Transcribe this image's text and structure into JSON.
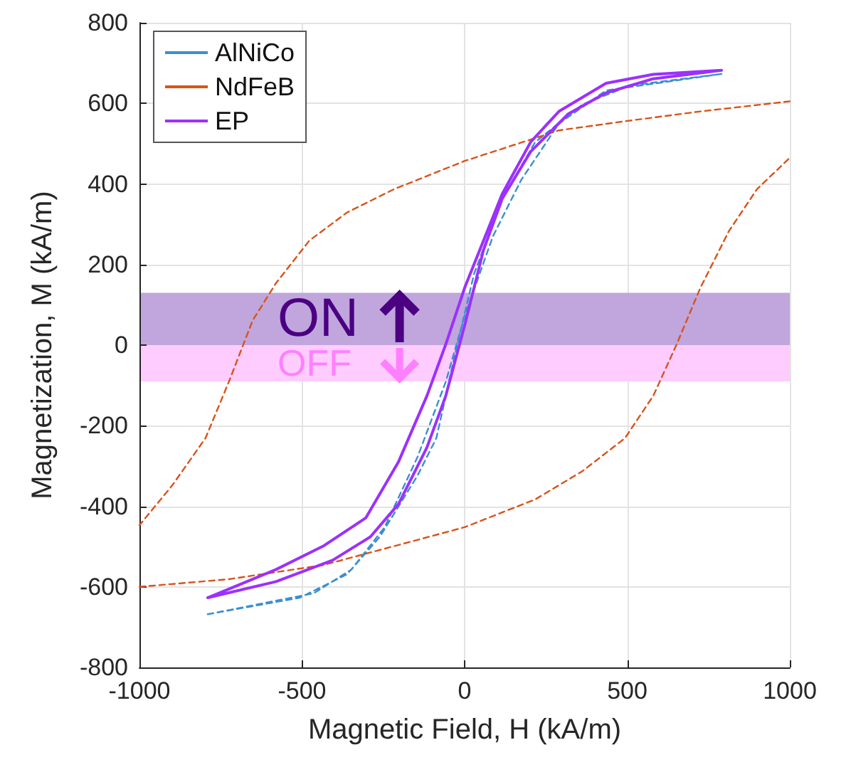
{
  "chart_data": {
    "type": "line",
    "xlabel": "Magnetic Field, H (kA/m)",
    "ylabel": "Magnetization, M (kA/m)",
    "xlim": [
      -1000,
      1000
    ],
    "xticks": [
      -1000,
      -500,
      0,
      500,
      1000
    ],
    "ylim": [
      -800,
      800
    ],
    "yticks": [
      -800,
      -600,
      -400,
      -200,
      0,
      200,
      400,
      600,
      800
    ],
    "grid": true,
    "legend": "top left",
    "marker": "none",
    "bands": [
      {
        "axis": "y",
        "from": 0,
        "to": 130,
        "label": "ON",
        "color": "#c0a6dc"
      },
      {
        "axis": "y",
        "from": -90,
        "to": 0,
        "label": "OFF",
        "color": "#ffccff"
      }
    ],
    "series": [
      {
        "name": "AlNiCo",
        "color": "#3b8fd0",
        "line_style": "dashed",
        "x": [
          -790,
          -507,
          -362,
          -261,
          -145,
          -87,
          -29,
          29,
          116,
          217,
          362,
          507,
          790,
          null,
          790,
          435,
          290,
          174,
          87,
          0,
          -58,
          -145,
          -246,
          -348,
          -464,
          -790
        ],
        "values": [
          -668,
          -627,
          -569,
          -476,
          -324,
          -231,
          -21,
          177,
          364,
          504,
          597,
          644,
          673,
          null,
          673,
          632,
          550,
          410,
          270,
          72,
          -91,
          -278,
          -452,
          -557,
          -616,
          -668
        ]
      },
      {
        "name": "NdFeB",
        "color": "#d95319",
        "line_style": "dashed",
        "x": [
          -1000,
          -725,
          -435,
          -217,
          0,
          217,
          362,
          493,
          580,
          652,
          725,
          812,
          899,
          1000,
          null,
          1000,
          725,
          497,
          290,
          0,
          -217,
          -362,
          -478,
          -580,
          -652,
          -725,
          -797,
          -899,
          -1000
        ],
        "values": [
          -600,
          -581,
          -546,
          -499,
          -452,
          -383,
          -313,
          -231,
          -126,
          2,
          142,
          282,
          387,
          465,
          null,
          605,
          580,
          556,
          533,
          457,
          387,
          329,
          259,
          154,
          61,
          -91,
          -231,
          -348,
          -447
        ]
      },
      {
        "name": "EP",
        "color": "#9b30ff",
        "line_style": "solid",
        "x": [
          -790,
          -580,
          -406,
          -290,
          -203,
          -116,
          -58,
          0,
          58,
          116,
          203,
          319,
          435,
          580,
          790,
          null,
          790,
          580,
          435,
          290,
          203,
          116,
          58,
          0,
          -58,
          -116,
          -203,
          -304,
          -435,
          -580,
          -790
        ],
        "values": [
          -627,
          -587,
          -534,
          -476,
          -394,
          -254,
          -126,
          49,
          236,
          364,
          480,
          574,
          626,
          661,
          682,
          null,
          682,
          672,
          650,
          580,
          504,
          376,
          259,
          142,
          2,
          -126,
          -289,
          -429,
          -499,
          -557,
          -627
        ]
      }
    ]
  }
}
